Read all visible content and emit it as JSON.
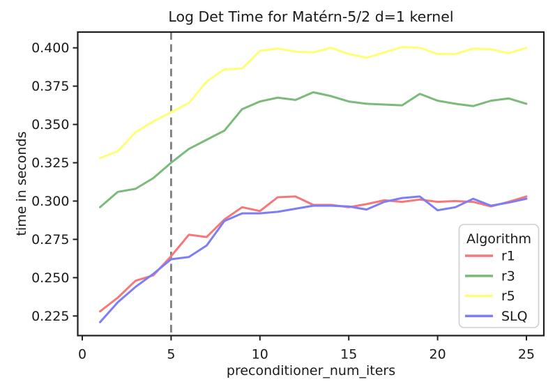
{
  "chart_data": {
    "type": "line",
    "title": "Log Det Time for Matérn-5/2 d=1 kernel",
    "xlabel": "preconditioner_num_iters",
    "ylabel": "time in seconds",
    "xlim": [
      -0.255,
      25.98
    ],
    "ylim": [
      0.2122,
      0.4103
    ],
    "grid": false,
    "x": [
      1,
      2,
      3,
      4,
      5,
      6,
      7,
      8,
      9,
      10,
      11,
      12,
      13,
      14,
      15,
      16,
      17,
      18,
      19,
      20,
      21,
      22,
      23,
      24,
      25
    ],
    "series": [
      {
        "name": "r1",
        "color": "#f57878",
        "values": [
          0.228,
          0.237,
          0.248,
          0.2515,
          0.264,
          0.278,
          0.2765,
          0.288,
          0.296,
          0.2935,
          0.3025,
          0.303,
          0.2975,
          0.2975,
          0.296,
          0.298,
          0.3005,
          0.2995,
          0.301,
          0.2995,
          0.3,
          0.2995,
          0.2965,
          0.2995,
          0.303
        ]
      },
      {
        "name": "r3",
        "color": "#7bba7b",
        "values": [
          0.296,
          0.306,
          0.308,
          0.315,
          0.325,
          0.334,
          0.34,
          0.346,
          0.36,
          0.365,
          0.3675,
          0.366,
          0.371,
          0.3685,
          0.365,
          0.3635,
          0.363,
          0.3625,
          0.37,
          0.3655,
          0.3635,
          0.362,
          0.3655,
          0.367,
          0.3635
        ]
      },
      {
        "name": "r5",
        "color": "#ffff75",
        "values": [
          0.328,
          0.3325,
          0.345,
          0.352,
          0.358,
          0.364,
          0.378,
          0.386,
          0.3865,
          0.398,
          0.3995,
          0.3975,
          0.397,
          0.4,
          0.396,
          0.3935,
          0.397,
          0.4005,
          0.4,
          0.396,
          0.396,
          0.3995,
          0.399,
          0.3965,
          0.4
        ]
      },
      {
        "name": "SLQ",
        "color": "#7d7df5",
        "values": [
          0.221,
          0.234,
          0.244,
          0.2525,
          0.262,
          0.2635,
          0.271,
          0.287,
          0.292,
          0.292,
          0.293,
          0.295,
          0.297,
          0.297,
          0.2965,
          0.2945,
          0.2995,
          0.302,
          0.303,
          0.294,
          0.296,
          0.3015,
          0.297,
          0.299,
          0.3015
        ]
      }
    ],
    "vline": {
      "x": 5,
      "color": "#7f7f7f",
      "style": "dashed"
    },
    "xticks": {
      "values": [
        0,
        5,
        10,
        15,
        20,
        25
      ],
      "labels": [
        "0",
        "5",
        "10",
        "15",
        "20",
        "25"
      ]
    },
    "yticks": {
      "values": [
        0.225,
        0.25,
        0.275,
        0.3,
        0.325,
        0.35,
        0.375,
        0.4
      ],
      "labels": [
        "0.225",
        "0.250",
        "0.275",
        "0.300",
        "0.325",
        "0.350",
        "0.375",
        "0.400"
      ]
    },
    "legend": {
      "title": "Algorithm",
      "position": "lower right",
      "entries": [
        "r1",
        "r3",
        "r5",
        "SLQ"
      ]
    }
  },
  "colors": {
    "spine": "#1f1f1f",
    "text": "#1a1a1a",
    "legend_border": "#cfcfcf",
    "background": "#ffffff"
  }
}
